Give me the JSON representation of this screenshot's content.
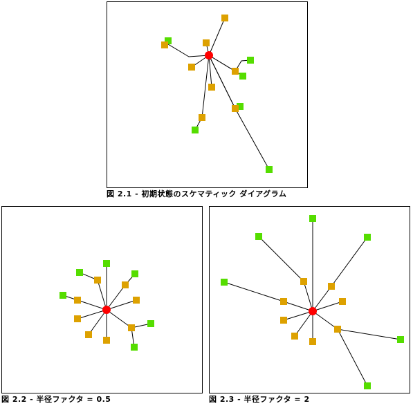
{
  "figures": [
    {
      "caption": "図 2.1 - 初期状態のスケマティック ダイアグラム",
      "description_key": "initial",
      "colors": {
        "hub": "#ff0000",
        "intermediate": "#dda100",
        "leaf": "#55dd00",
        "edge": "#000000"
      }
    },
    {
      "caption": "図 2.2 - 半径ファクタ = 0.5",
      "description_key": "radius_0_5",
      "colors": {
        "hub": "#ff0000",
        "intermediate": "#dda100",
        "leaf": "#55dd00",
        "edge": "#000000"
      }
    },
    {
      "caption": "図 2.3 - 半径ファクタ = 2",
      "description_key": "radius_2",
      "colors": {
        "hub": "#ff0000",
        "intermediate": "#dda100",
        "leaf": "#55dd00",
        "edge": "#000000"
      }
    }
  ],
  "icons": {
    "hub": "red-circle-node",
    "intermediate": "orange-square-node",
    "leaf": "green-square-node"
  }
}
